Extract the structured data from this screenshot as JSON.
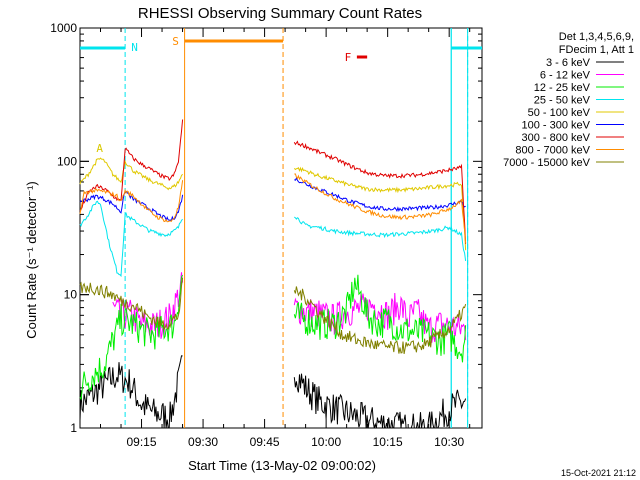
{
  "chart_data": {
    "type": "line",
    "title": "RHESSI Observing Summary Count Rates",
    "xlabel": "Start Time (13-May-02 09:00:02)",
    "ylabel": "Count Rate (s⁻¹ detector⁻¹)",
    "y_scale": "log",
    "ylim": [
      1,
      1000
    ],
    "xlim_minutes": [
      0,
      98
    ],
    "x_ticks": [
      {
        "label": "09:15",
        "value": 15
      },
      {
        "label": "09:30",
        "value": 30
      },
      {
        "label": "09:45",
        "value": 45
      },
      {
        "label": "10:00",
        "value": 60
      },
      {
        "label": "10:15",
        "value": 75
      },
      {
        "label": "10:30",
        "value": 90
      }
    ],
    "y_ticks": [
      {
        "label": "1",
        "value": 1
      },
      {
        "label": "10",
        "value": 10
      },
      {
        "label": "100",
        "value": 100
      },
      {
        "label": "1000",
        "value": 1000
      }
    ],
    "legend_header": [
      "Det 1,3,4,5,6,9,",
      "FDecim 1, Att 1"
    ],
    "legend_position": "right",
    "footer": "15-Oct-2021 21:12",
    "flags": [
      {
        "label": "N",
        "color": "#00e5ee"
      },
      {
        "label": "S",
        "color": "#ff8c00"
      },
      {
        "label": "A",
        "color": "#d8c800"
      },
      {
        "label": "F",
        "color": "#e00000"
      }
    ],
    "night_lines_minutes": [
      11,
      90.5,
      94.5
    ],
    "saa_lines_minutes": [
      25.5,
      49.5
    ],
    "series": [
      {
        "name": "3 - 6 keV",
        "color": "#000000",
        "values": [
          [
            0,
            1.5
          ],
          [
            5,
            2
          ],
          [
            9,
            2.5
          ],
          [
            12,
            2.2
          ],
          [
            15,
            1.5
          ],
          [
            18,
            1.3
          ],
          [
            22,
            1.2
          ],
          [
            25,
            3
          ],
          [
            52,
            2.8
          ],
          [
            55,
            2
          ],
          [
            58,
            1.6
          ],
          [
            62,
            1.4
          ],
          [
            68,
            1.2
          ],
          [
            72,
            1.1
          ],
          [
            80,
            1
          ],
          [
            85,
            1
          ],
          [
            90,
            1.4
          ],
          [
            94,
            1.6
          ]
        ]
      },
      {
        "name": "6 - 12 keV",
        "color": "#ff00ff",
        "values": [
          [
            8,
            7.8
          ],
          [
            10,
            7
          ],
          [
            12,
            7.2
          ],
          [
            15,
            6
          ],
          [
            18,
            5.8
          ],
          [
            20,
            6.2
          ],
          [
            22,
            6.8
          ],
          [
            25,
            12
          ],
          [
            52,
            8
          ],
          [
            55,
            7.5
          ],
          [
            58,
            7.2
          ],
          [
            62,
            6.5
          ],
          [
            65,
            7.5
          ],
          [
            70,
            8
          ],
          [
            72,
            8.5
          ],
          [
            75,
            7
          ],
          [
            78,
            8.5
          ],
          [
            80,
            6.5
          ],
          [
            82,
            7.5
          ],
          [
            85,
            5.5
          ],
          [
            88,
            6
          ],
          [
            90,
            5.8
          ],
          [
            94,
            5.5
          ]
        ]
      },
      {
        "name": "12 - 25 keV",
        "color": "#00ee00",
        "values": [
          [
            0,
            2
          ],
          [
            3,
            2.5
          ],
          [
            6,
            3
          ],
          [
            8,
            4.5
          ],
          [
            10,
            6.5
          ],
          [
            13,
            6
          ],
          [
            16,
            5.2
          ],
          [
            18,
            5
          ],
          [
            20,
            5.5
          ],
          [
            23,
            6
          ],
          [
            25,
            14
          ],
          [
            52,
            7
          ],
          [
            55,
            6.5
          ],
          [
            58,
            6
          ],
          [
            62,
            6
          ],
          [
            65,
            7.5
          ],
          [
            67,
            12
          ],
          [
            69,
            9
          ],
          [
            70,
            7
          ],
          [
            73,
            6
          ],
          [
            75,
            6.5
          ],
          [
            78,
            5.5
          ],
          [
            82,
            5.2
          ],
          [
            85,
            5
          ],
          [
            88,
            4.5
          ],
          [
            90,
            5
          ],
          [
            93,
            3.8
          ],
          [
            94,
            5
          ]
        ]
      },
      {
        "name": "25 - 50 keV",
        "color": "#00e5ee",
        "values": [
          [
            0,
            33
          ],
          [
            2,
            40
          ],
          [
            4,
            50
          ],
          [
            5,
            48
          ],
          [
            7,
            25
          ],
          [
            9,
            15
          ],
          [
            10,
            14
          ],
          [
            11,
            40
          ],
          [
            13,
            36
          ],
          [
            15,
            33
          ],
          [
            17,
            30
          ],
          [
            19,
            29
          ],
          [
            21,
            28
          ],
          [
            23,
            30
          ],
          [
            24,
            32
          ],
          [
            25,
            38
          ],
          [
            52,
            40
          ],
          [
            55,
            33
          ],
          [
            58,
            32
          ],
          [
            62,
            30
          ],
          [
            66,
            29
          ],
          [
            70,
            28.5
          ],
          [
            74,
            28
          ],
          [
            78,
            28.5
          ],
          [
            82,
            29
          ],
          [
            86,
            30
          ],
          [
            90,
            32
          ],
          [
            93,
            28
          ],
          [
            94,
            18
          ]
        ]
      },
      {
        "name": "50 - 100 keV",
        "color": "#e0c800",
        "values": [
          [
            0,
            68
          ],
          [
            2,
            80
          ],
          [
            4,
            100
          ],
          [
            5,
            105
          ],
          [
            6,
            100
          ],
          [
            8,
            80
          ],
          [
            10,
            70
          ],
          [
            11,
            100
          ],
          [
            13,
            85
          ],
          [
            15,
            78
          ],
          [
            17,
            72
          ],
          [
            19,
            68
          ],
          [
            21,
            64
          ],
          [
            22,
            63
          ],
          [
            23,
            65
          ],
          [
            24,
            70
          ],
          [
            25,
            80
          ],
          [
            52,
            90
          ],
          [
            55,
            85
          ],
          [
            58,
            78
          ],
          [
            62,
            72
          ],
          [
            66,
            66
          ],
          [
            70,
            62
          ],
          [
            74,
            61
          ],
          [
            78,
            61
          ],
          [
            82,
            62
          ],
          [
            86,
            64
          ],
          [
            90,
            66
          ],
          [
            93,
            68
          ],
          [
            94,
            22
          ]
        ]
      },
      {
        "name": "100 - 300 keV",
        "color": "#0000ff",
        "values": [
          [
            0,
            50
          ],
          [
            2,
            52
          ],
          [
            4,
            55
          ],
          [
            6,
            52
          ],
          [
            8,
            48
          ],
          [
            10,
            42
          ],
          [
            11,
            60
          ],
          [
            13,
            52
          ],
          [
            15,
            48
          ],
          [
            17,
            44
          ],
          [
            19,
            40
          ],
          [
            21,
            37
          ],
          [
            22,
            36
          ],
          [
            23,
            38
          ],
          [
            24,
            42
          ],
          [
            25,
            55
          ],
          [
            52,
            75
          ],
          [
            55,
            68
          ],
          [
            58,
            62
          ],
          [
            62,
            56
          ],
          [
            66,
            50
          ],
          [
            70,
            46
          ],
          [
            74,
            44
          ],
          [
            78,
            44
          ],
          [
            82,
            44.5
          ],
          [
            86,
            45
          ],
          [
            90,
            47
          ],
          [
            93,
            50
          ],
          [
            94,
            45
          ]
        ]
      },
      {
        "name": "300 - 800 keV",
        "color": "#e00000",
        "values": [
          [
            0,
            42
          ],
          [
            2,
            58
          ],
          [
            4,
            65
          ],
          [
            6,
            62
          ],
          [
            8,
            55
          ],
          [
            10,
            50
          ],
          [
            11,
            125
          ],
          [
            13,
            105
          ],
          [
            15,
            95
          ],
          [
            17,
            88
          ],
          [
            19,
            80
          ],
          [
            21,
            75
          ],
          [
            22,
            74
          ],
          [
            23,
            80
          ],
          [
            24,
            100
          ],
          [
            25,
            200
          ],
          [
            52,
            140
          ],
          [
            55,
            130
          ],
          [
            58,
            118
          ],
          [
            62,
            105
          ],
          [
            66,
            92
          ],
          [
            70,
            82
          ],
          [
            74,
            78
          ],
          [
            78,
            78
          ],
          [
            82,
            79
          ],
          [
            86,
            82
          ],
          [
            90,
            86
          ],
          [
            93,
            90
          ],
          [
            94,
            25
          ]
        ]
      },
      {
        "name": "800 - 7000 keV",
        "color": "#ff8c00",
        "values": [
          [
            0,
            40
          ],
          [
            1,
            58
          ],
          [
            3,
            60
          ],
          [
            5,
            60
          ],
          [
            7,
            58
          ],
          [
            9,
            55
          ],
          [
            10,
            50
          ],
          [
            11,
            60
          ],
          [
            13,
            55
          ],
          [
            15,
            48
          ],
          [
            17,
            42
          ],
          [
            19,
            38
          ],
          [
            21,
            36
          ],
          [
            22,
            35
          ],
          [
            23,
            38
          ],
          [
            24,
            45
          ],
          [
            25,
            70
          ],
          [
            52,
            80
          ],
          [
            55,
            70
          ],
          [
            58,
            62
          ],
          [
            62,
            53
          ],
          [
            66,
            47
          ],
          [
            70,
            42
          ],
          [
            74,
            39
          ],
          [
            78,
            38
          ],
          [
            82,
            38.5
          ],
          [
            86,
            40
          ],
          [
            90,
            44
          ],
          [
            93,
            50
          ],
          [
            94,
            25
          ]
        ]
      },
      {
        "name": "7000 - 15000 keV",
        "color": "#808000",
        "values": [
          [
            0,
            11
          ],
          [
            2,
            11.5
          ],
          [
            4,
            11
          ],
          [
            6,
            10.5
          ],
          [
            8,
            10
          ],
          [
            10,
            9
          ],
          [
            12,
            8.5
          ],
          [
            14,
            8
          ],
          [
            16,
            7
          ],
          [
            18,
            6.5
          ],
          [
            20,
            6
          ],
          [
            22,
            6.2
          ],
          [
            24,
            7
          ],
          [
            25,
            12
          ],
          [
            52,
            11
          ],
          [
            54,
            10
          ],
          [
            56,
            9
          ],
          [
            58,
            7.5
          ],
          [
            60,
            6.5
          ],
          [
            62,
            5.8
          ],
          [
            64,
            5
          ],
          [
            68,
            4.5
          ],
          [
            72,
            4.2
          ],
          [
            76,
            4
          ],
          [
            80,
            4
          ],
          [
            84,
            4.2
          ],
          [
            88,
            5
          ],
          [
            90,
            5.5
          ],
          [
            92,
            6.5
          ],
          [
            94,
            8
          ]
        ]
      }
    ]
  }
}
